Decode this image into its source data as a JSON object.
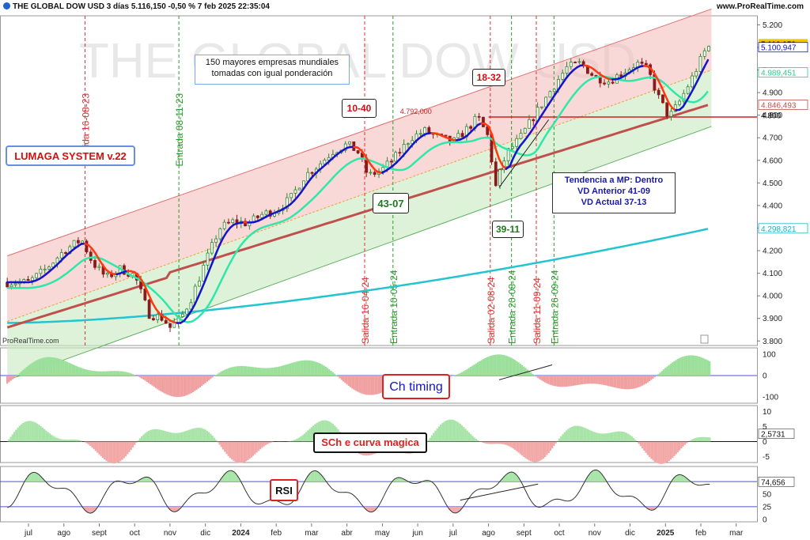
{
  "header": {
    "title": "THE GLOBAL DOW USD 3 días 5.116,150 -0,50 % 7 feb 2025 22:35:04",
    "site": "www.ProRealTime.com"
  },
  "watermark": "THE GLOBAL DOW USD",
  "footer_brand": "ProRealTime.com",
  "annotations": {
    "description_line1": "150 mayores empresas mundiales",
    "description_line2": "tomadas con igual ponderación",
    "system_label": "LUMAGA SYSTEM v.22",
    "trend_line1": "Tendencia a MP: Dentro",
    "trend_line2": "VD Anterior 41-09",
    "trend_line3": "VD Actual 37-13",
    "box_1040": "10-40",
    "box_1832": "18-32",
    "box_4307": "43-07",
    "box_3911": "39-11",
    "level_label": "4.792,000",
    "ch_timing": "Ch timing",
    "sch_curva": "SCh e curva magica",
    "rsi": "RSI"
  },
  "colors": {
    "up_candle": "#2f8a2f",
    "down_candle": "#8b1a1a",
    "blue_ma": "#1414c8",
    "red_ma": "#ff3a10",
    "cyan_ma": "#2ee8a8",
    "brown_ma": "#c0504d",
    "long_ma": "#22c4d0",
    "channel_red": "#f4b8b8",
    "channel_green": "#c8eac0",
    "salida_line": "#e03030",
    "entrada_line": "#2a9a2a"
  },
  "chart_data": [
    {
      "type": "line",
      "title": "THE GLOBAL DOW USD 3 días",
      "y_ticks": [
        "5.200",
        "5.100",
        "5.000",
        "4.900",
        "4.800",
        "4.700",
        "4.600",
        "4.500",
        "4.400",
        "4.300",
        "4.200",
        "4.100",
        "4.000",
        "3.900",
        "3.800"
      ],
      "ylim": [
        3780,
        5240
      ],
      "last_price": "5.116,150",
      "price_labels": [
        {
          "text": "5.124,518",
          "value": 5124.5,
          "color": "#000000"
        },
        {
          "text": "5.116,150",
          "value": 5116.2,
          "color": "#000000",
          "bg": "#f5c400"
        },
        {
          "text": "5.100,947",
          "value": 5100.9,
          "color": "#1414c8"
        },
        {
          "text": "4.989,451",
          "value": 4989.5,
          "color": "#2ec890"
        },
        {
          "text": "4.846,493",
          "value": 4846.5,
          "color": "#c0504d"
        },
        {
          "text": "4.800",
          "value": 4800,
          "color": "#000000"
        },
        {
          "text": "4.298,821",
          "value": 4298.8,
          "color": "#16b4c0"
        }
      ],
      "horizontal_level": 4792,
      "x_months": [
        "jul",
        "ago",
        "sept",
        "oct",
        "nov",
        "dic",
        "2024",
        "feb",
        "mar",
        "abr",
        "may",
        "jun",
        "jul",
        "ago",
        "sept",
        "oct",
        "nov",
        "dic",
        "2025",
        "feb",
        "mar"
      ],
      "signals": [
        {
          "label": "Salida 16-08-23",
          "kind": "salida",
          "month_pos": 1.6
        },
        {
          "label": "Entrada 08-11-23",
          "kind": "entrada",
          "month_pos": 4.25
        },
        {
          "label": "Salida 16-04-24",
          "kind": "salida",
          "month_pos": 9.5
        },
        {
          "label": "Entrada 10-05-24",
          "kind": "entrada",
          "month_pos": 10.3
        },
        {
          "label": "Salida 02-08-24",
          "kind": "salida",
          "month_pos": 13.05
        },
        {
          "label": "Entrada 20-08-24",
          "kind": "entrada",
          "month_pos": 13.65
        },
        {
          "label": "Salida 11-09-24",
          "kind": "salida",
          "month_pos": 14.35
        },
        {
          "label": "Entrada 26-09-24",
          "kind": "entrada",
          "month_pos": 14.85
        }
      ],
      "price_path": [
        [
          0.0,
          4060
        ],
        [
          0.5,
          4120
        ],
        [
          1.0,
          4200
        ],
        [
          1.5,
          4250
        ],
        [
          1.8,
          4150
        ],
        [
          2.2,
          4080
        ],
        [
          2.6,
          4120
        ],
        [
          3.0,
          4090
        ],
        [
          3.4,
          3920
        ],
        [
          3.8,
          3900
        ],
        [
          4.0,
          3860
        ],
        [
          4.3,
          3900
        ],
        [
          4.6,
          3990
        ],
        [
          5.0,
          4150
        ],
        [
          5.4,
          4300
        ],
        [
          5.8,
          4330
        ],
        [
          6.2,
          4320
        ],
        [
          6.6,
          4360
        ],
        [
          7.0,
          4380
        ],
        [
          7.4,
          4430
        ],
        [
          7.8,
          4530
        ],
        [
          8.2,
          4580
        ],
        [
          8.6,
          4640
        ],
        [
          9.0,
          4670
        ],
        [
          9.3,
          4640
        ],
        [
          9.6,
          4530
        ],
        [
          10.0,
          4560
        ],
        [
          10.4,
          4620
        ],
        [
          10.8,
          4700
        ],
        [
          11.2,
          4730
        ],
        [
          11.6,
          4700
        ],
        [
          12.0,
          4680
        ],
        [
          12.4,
          4740
        ],
        [
          12.7,
          4790
        ],
        [
          13.0,
          4700
        ],
        [
          13.2,
          4480
        ],
        [
          13.5,
          4630
        ],
        [
          13.9,
          4700
        ],
        [
          14.3,
          4800
        ],
        [
          14.8,
          4920
        ],
        [
          15.2,
          5010
        ],
        [
          15.6,
          5030
        ],
        [
          16.0,
          4970
        ],
        [
          16.4,
          4950
        ],
        [
          16.8,
          4990
        ],
        [
          17.2,
          5030
        ],
        [
          17.5,
          5000
        ],
        [
          17.8,
          4880
        ],
        [
          18.1,
          4790
        ],
        [
          18.4,
          4860
        ],
        [
          18.8,
          4980
        ],
        [
          19.1,
          5080
        ],
        [
          19.3,
          5116
        ]
      ]
    },
    {
      "type": "area",
      "title": "Ch timing",
      "y_ticks": [
        "100",
        "0",
        "-100"
      ],
      "ylim": [
        -130,
        130
      ]
    },
    {
      "type": "area",
      "title": "SCh e curva magica",
      "y_ticks": [
        "10",
        "5",
        "0",
        "-5"
      ],
      "ylim": [
        -7,
        12
      ],
      "last_value": "2,5731"
    },
    {
      "type": "line",
      "title": "RSI",
      "y_ticks": [
        "50",
        "25",
        "0"
      ],
      "ylim": [
        -5,
        105
      ],
      "last_value": "74,656"
    }
  ]
}
